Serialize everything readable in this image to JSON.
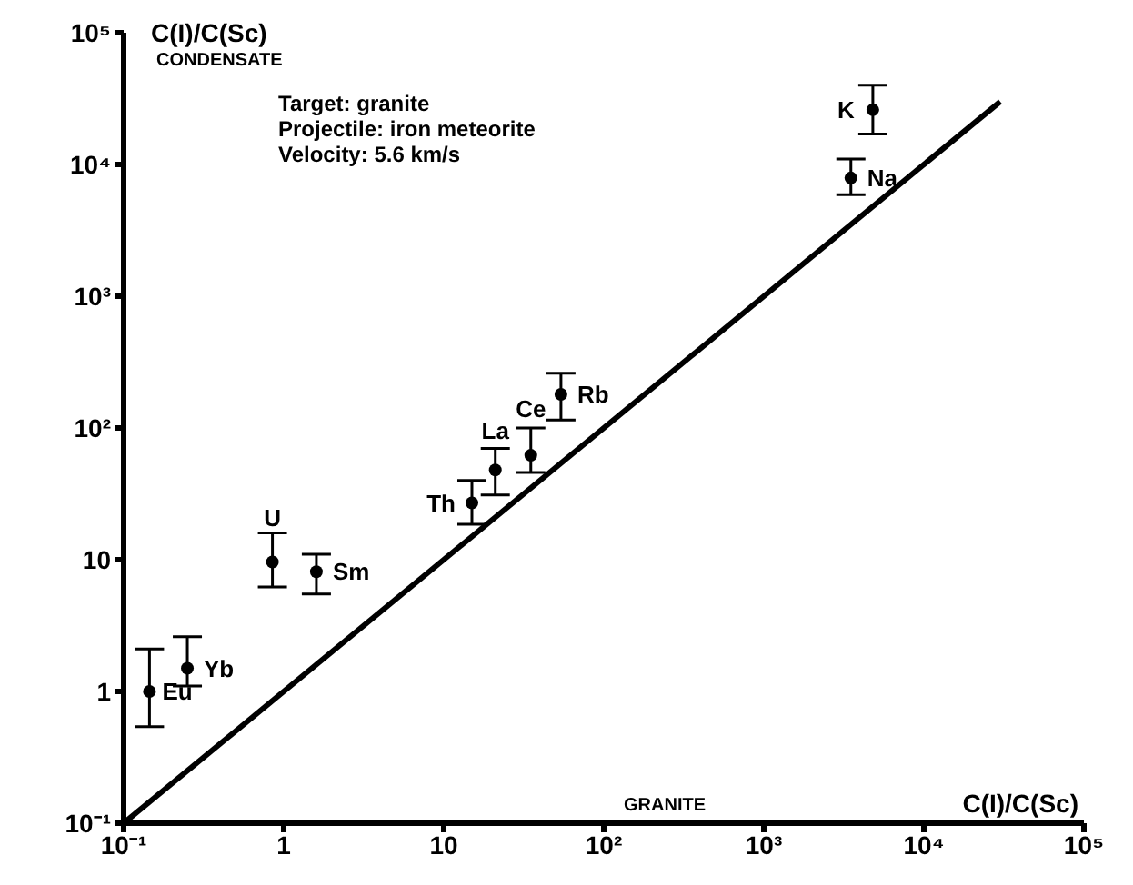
{
  "chart_data": {
    "type": "scatter",
    "ylabel": "C(I)/C(Sc)",
    "xlabel": "C(I)/C(Sc)",
    "log": "xy",
    "xlim": [
      0.1,
      100000
    ],
    "ylim": [
      0.1,
      100000
    ],
    "xticks": [
      {
        "value": 0.1,
        "label": "10⁻¹"
      },
      1,
      10,
      {
        "value": 100,
        "label": "10²"
      },
      {
        "value": 1000,
        "label": "10³"
      },
      {
        "value": 10000,
        "label": "10⁴"
      },
      {
        "value": 100000,
        "label": "10⁵"
      }
    ],
    "yticks": [
      {
        "value": 0.1,
        "label": "10⁻¹"
      },
      1,
      10,
      {
        "value": 100,
        "label": "10²"
      },
      {
        "value": 1000,
        "label": "10³"
      },
      {
        "value": 10000,
        "label": "10⁴"
      },
      {
        "value": 100000,
        "label": "10⁵"
      }
    ],
    "series": [
      {
        "marker": "circle",
        "color": "#000000",
        "x": [
          0.145,
          0.25,
          0.85,
          1.6,
          15,
          21,
          35,
          54,
          3500,
          4800
        ],
        "values": [
          1.0,
          1.5,
          9.6,
          8.1,
          27,
          48,
          62,
          180,
          7900,
          26000
        ],
        "errors": [
          [
            0.54,
            2.1
          ],
          [
            1.1,
            2.6
          ],
          [
            6.2,
            16
          ],
          [
            5.5,
            11
          ],
          [
            18.6,
            40
          ],
          [
            31,
            70
          ],
          [
            46,
            100
          ],
          [
            115,
            260
          ],
          [
            5900,
            11000
          ],
          [
            17000,
            40000
          ]
        ]
      },
      {
        "type": "line",
        "color": "#000000",
        "x": [
          0.1,
          30000
        ],
        "values": [
          0.1,
          30000
        ]
      }
    ],
    "annotations": [
      "Target: granite",
      "Projectile: iron meteorite",
      "Velocity: 5.6 km/s",
      "CONDENSATE",
      "GRANITE",
      {
        "text": "Eu",
        "x": 0.145,
        "y": 1.0
      },
      {
        "text": "Yb",
        "x": 0.25,
        "y": 1.5
      },
      {
        "text": "U",
        "x": 0.85,
        "y": 9.6
      },
      {
        "text": "Sm",
        "x": 1.6,
        "y": 8.1
      },
      {
        "text": "Th",
        "x": 15,
        "y": 27
      },
      {
        "text": "La",
        "x": 21,
        "y": 48
      },
      {
        "text": "Ce",
        "x": 35,
        "y": 62
      },
      {
        "text": "Rb",
        "x": 54,
        "y": 180
      },
      {
        "text": "Na",
        "x": 3500,
        "y": 7900
      },
      {
        "text": "K",
        "x": 4800,
        "y": 26000
      }
    ]
  }
}
